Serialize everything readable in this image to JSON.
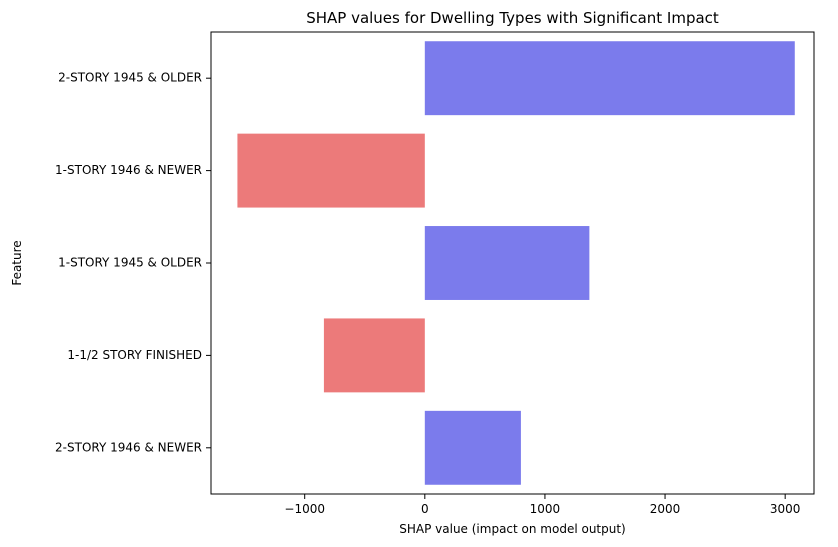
{
  "chart_data": {
    "type": "bar",
    "orientation": "horizontal",
    "title": "SHAP values for Dwelling Types with Significant Impact",
    "xlabel": "SHAP value (impact on model output)",
    "ylabel": "Feature",
    "xlim": [
      -1780,
      3240
    ],
    "x_ticks": [
      -1000,
      0,
      1000,
      2000,
      3000
    ],
    "x_tick_labels": [
      "−1000",
      "0",
      "1000",
      "2000",
      "3000"
    ],
    "categories": [
      "2-STORY 1945 & OLDER",
      "1-STORY 1946 & NEWER",
      "1-STORY 1945 & OLDER",
      "1-1/2 STORY FINISHED",
      "2-STORY 1946 & NEWER"
    ],
    "values": [
      3080,
      -1560,
      1370,
      -840,
      800
    ],
    "colors": {
      "positive": "#7b7bec",
      "negative": "#ec7a7a"
    },
    "grid": false,
    "legend": "none"
  }
}
